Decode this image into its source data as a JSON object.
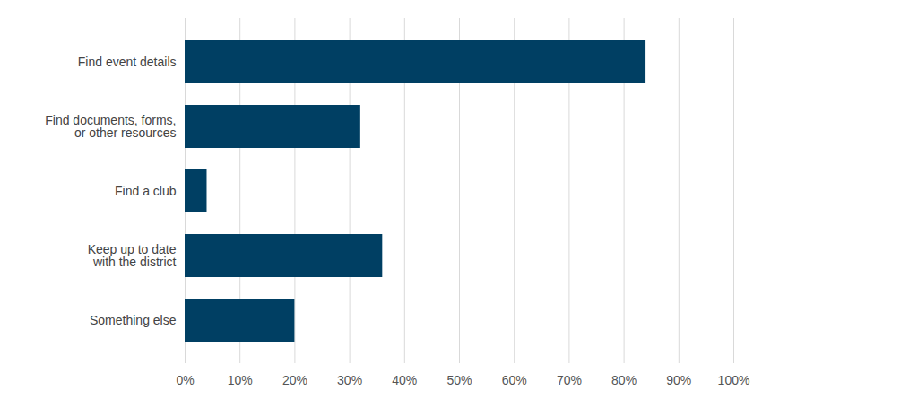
{
  "chart_data": {
    "type": "bar",
    "orientation": "horizontal",
    "categories": [
      "Find event details",
      "Find documents, forms,\nor other resources",
      "Find a club",
      "Keep up to date\nwith the district",
      "Something else"
    ],
    "values": [
      84,
      32,
      4,
      36,
      20
    ],
    "color": "#003f63",
    "xlim": [
      0,
      100
    ],
    "xticks": [
      {
        "value": 0,
        "label": "0%"
      },
      {
        "value": 10,
        "label": "10%"
      },
      {
        "value": 20,
        "label": "20%"
      },
      {
        "value": 30,
        "label": "30%"
      },
      {
        "value": 40,
        "label": "40%"
      },
      {
        "value": 50,
        "label": "50%"
      },
      {
        "value": 60,
        "label": "60%"
      },
      {
        "value": 70,
        "label": "70%"
      },
      {
        "value": 80,
        "label": "80%"
      },
      {
        "value": 90,
        "label": "90%"
      },
      {
        "value": 100,
        "label": "100%"
      }
    ],
    "grid": true
  }
}
